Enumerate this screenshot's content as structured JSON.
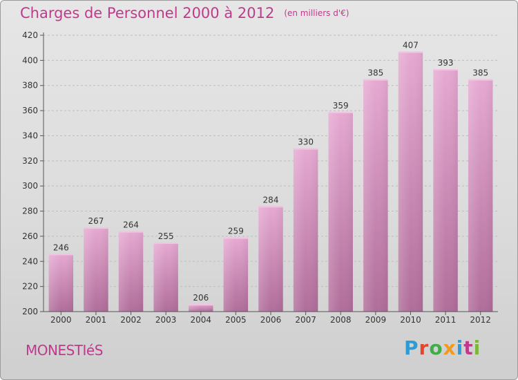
{
  "header": {
    "title": "Charges de Personnel 2000 à 2012",
    "unit_note": "(en milliers d'€)"
  },
  "footer": {
    "commune": "MONESTIéS",
    "logo_letters": [
      {
        "ch": "P",
        "color": "#2f9bd6"
      },
      {
        "ch": "r",
        "color": "#e8432b"
      },
      {
        "ch": "o",
        "color": "#3fae49"
      },
      {
        "ch": "x",
        "color": "#f29a1f"
      },
      {
        "ch": "i",
        "color": "#2f9bd6"
      },
      {
        "ch": "t",
        "color": "#c03a8c"
      },
      {
        "ch": "i",
        "color": "#7ab83a"
      }
    ]
  },
  "chart_data": {
    "type": "bar",
    "title": "Charges de Personnel 2000 à 2012",
    "subtitle": "(en milliers d'€)",
    "categories": [
      "2000",
      "2001",
      "2002",
      "2003",
      "2004",
      "2005",
      "2006",
      "2007",
      "2008",
      "2009",
      "2010",
      "2011",
      "2012"
    ],
    "values": [
      246,
      267,
      264,
      255,
      206,
      259,
      284,
      330,
      359,
      385,
      407,
      393,
      385
    ],
    "ylim": [
      200,
      420
    ],
    "yticks": [
      200,
      220,
      240,
      260,
      280,
      300,
      320,
      340,
      360,
      380,
      400,
      420
    ],
    "grid": true,
    "bar_color": "#d88cbc"
  }
}
